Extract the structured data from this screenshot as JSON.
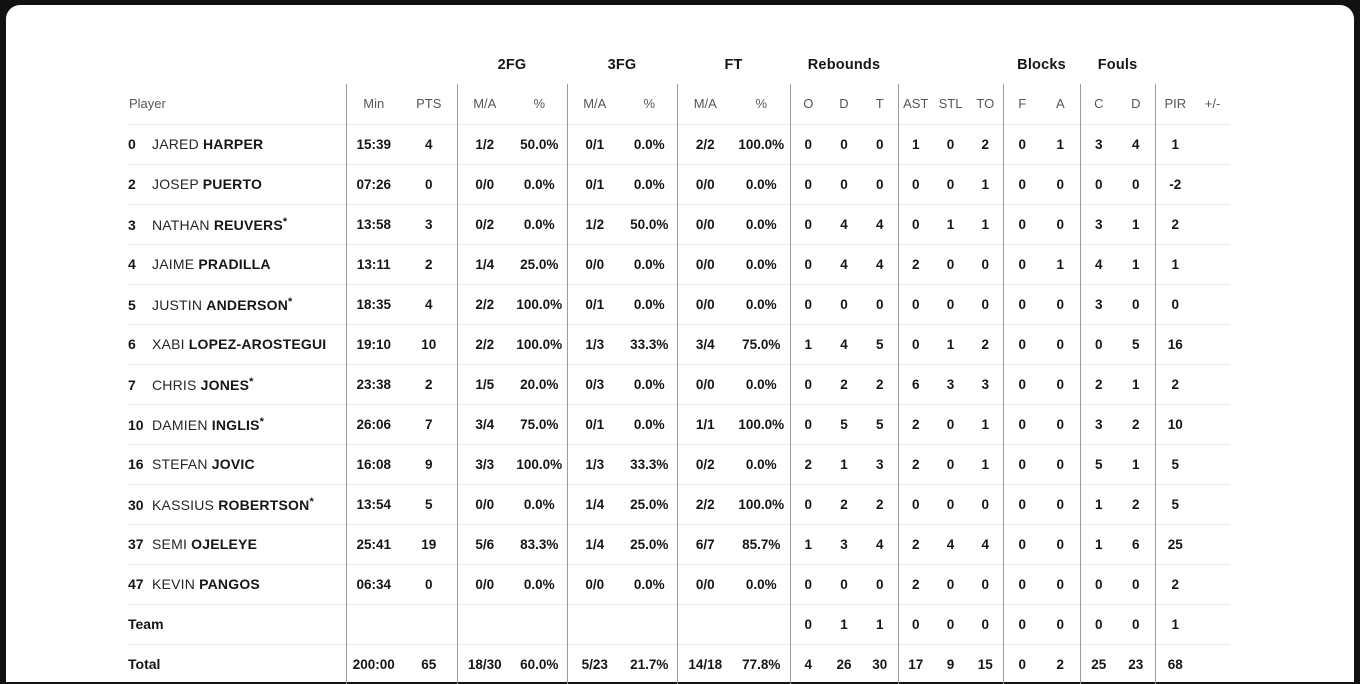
{
  "theme": {
    "page_bg": "#111111",
    "card_bg": "#ffffff",
    "text_dark": "#16161a",
    "text_gray": "#55565b",
    "divider": "#9a9a9f",
    "row_line": "#ebebeb"
  },
  "table": {
    "group_headers": [
      "2FG",
      "3FG",
      "FT",
      "Rebounds",
      "Blocks",
      "Fouls"
    ],
    "columns": [
      "Player",
      "Min",
      "PTS",
      "M/A",
      "%",
      "M/A",
      "%",
      "M/A",
      "%",
      "O",
      "D",
      "T",
      "AST",
      "STL",
      "TO",
      "F",
      "A",
      "C",
      "D",
      "PIR",
      "+/-"
    ],
    "rows": [
      {
        "num": "0",
        "first": "JARED",
        "last": "HARPER",
        "starter": false,
        "stats": {
          "min": "15:39",
          "pts": "4",
          "fg2ma": "1/2",
          "fg2pct": "50.0%",
          "fg3ma": "0/1",
          "fg3pct": "0.0%",
          "ftma": "2/2",
          "ftpct": "100.0%",
          "reb_o": "0",
          "reb_d": "0",
          "reb_t": "0",
          "ast": "1",
          "stl": "0",
          "to": "2",
          "blk_f": "0",
          "blk_a": "1",
          "foul_c": "3",
          "foul_d": "4",
          "pir": "1",
          "plusminus": ""
        }
      },
      {
        "num": "2",
        "first": "JOSEP",
        "last": "PUERTO",
        "starter": false,
        "stats": {
          "min": "07:26",
          "pts": "0",
          "fg2ma": "0/0",
          "fg2pct": "0.0%",
          "fg3ma": "0/1",
          "fg3pct": "0.0%",
          "ftma": "0/0",
          "ftpct": "0.0%",
          "reb_o": "0",
          "reb_d": "0",
          "reb_t": "0",
          "ast": "0",
          "stl": "0",
          "to": "1",
          "blk_f": "0",
          "blk_a": "0",
          "foul_c": "0",
          "foul_d": "0",
          "pir": "-2",
          "plusminus": ""
        }
      },
      {
        "num": "3",
        "first": "NATHAN",
        "last": "REUVERS",
        "starter": true,
        "stats": {
          "min": "13:58",
          "pts": "3",
          "fg2ma": "0/2",
          "fg2pct": "0.0%",
          "fg3ma": "1/2",
          "fg3pct": "50.0%",
          "ftma": "0/0",
          "ftpct": "0.0%",
          "reb_o": "0",
          "reb_d": "4",
          "reb_t": "4",
          "ast": "0",
          "stl": "1",
          "to": "1",
          "blk_f": "0",
          "blk_a": "0",
          "foul_c": "3",
          "foul_d": "1",
          "pir": "2",
          "plusminus": ""
        }
      },
      {
        "num": "4",
        "first": "JAIME",
        "last": "PRADILLA",
        "starter": false,
        "stats": {
          "min": "13:11",
          "pts": "2",
          "fg2ma": "1/4",
          "fg2pct": "25.0%",
          "fg3ma": "0/0",
          "fg3pct": "0.0%",
          "ftma": "0/0",
          "ftpct": "0.0%",
          "reb_o": "0",
          "reb_d": "4",
          "reb_t": "4",
          "ast": "2",
          "stl": "0",
          "to": "0",
          "blk_f": "0",
          "blk_a": "1",
          "foul_c": "4",
          "foul_d": "1",
          "pir": "1",
          "plusminus": ""
        }
      },
      {
        "num": "5",
        "first": "JUSTIN",
        "last": "ANDERSON",
        "starter": true,
        "stats": {
          "min": "18:35",
          "pts": "4",
          "fg2ma": "2/2",
          "fg2pct": "100.0%",
          "fg3ma": "0/1",
          "fg3pct": "0.0%",
          "ftma": "0/0",
          "ftpct": "0.0%",
          "reb_o": "0",
          "reb_d": "0",
          "reb_t": "0",
          "ast": "0",
          "stl": "0",
          "to": "0",
          "blk_f": "0",
          "blk_a": "0",
          "foul_c": "3",
          "foul_d": "0",
          "pir": "0",
          "plusminus": ""
        }
      },
      {
        "num": "6",
        "first": "XABI",
        "last": "LOPEZ-AROSTEGUI",
        "starter": false,
        "stats": {
          "min": "19:10",
          "pts": "10",
          "fg2ma": "2/2",
          "fg2pct": "100.0%",
          "fg3ma": "1/3",
          "fg3pct": "33.3%",
          "ftma": "3/4",
          "ftpct": "75.0%",
          "reb_o": "1",
          "reb_d": "4",
          "reb_t": "5",
          "ast": "0",
          "stl": "1",
          "to": "2",
          "blk_f": "0",
          "blk_a": "0",
          "foul_c": "0",
          "foul_d": "5",
          "pir": "16",
          "plusminus": ""
        }
      },
      {
        "num": "7",
        "first": "CHRIS",
        "last": "JONES",
        "starter": true,
        "stats": {
          "min": "23:38",
          "pts": "2",
          "fg2ma": "1/5",
          "fg2pct": "20.0%",
          "fg3ma": "0/3",
          "fg3pct": "0.0%",
          "ftma": "0/0",
          "ftpct": "0.0%",
          "reb_o": "0",
          "reb_d": "2",
          "reb_t": "2",
          "ast": "6",
          "stl": "3",
          "to": "3",
          "blk_f": "0",
          "blk_a": "0",
          "foul_c": "2",
          "foul_d": "1",
          "pir": "2",
          "plusminus": ""
        }
      },
      {
        "num": "10",
        "first": "DAMIEN",
        "last": "INGLIS",
        "starter": true,
        "stats": {
          "min": "26:06",
          "pts": "7",
          "fg2ma": "3/4",
          "fg2pct": "75.0%",
          "fg3ma": "0/1",
          "fg3pct": "0.0%",
          "ftma": "1/1",
          "ftpct": "100.0%",
          "reb_o": "0",
          "reb_d": "5",
          "reb_t": "5",
          "ast": "2",
          "stl": "0",
          "to": "1",
          "blk_f": "0",
          "blk_a": "0",
          "foul_c": "3",
          "foul_d": "2",
          "pir": "10",
          "plusminus": ""
        }
      },
      {
        "num": "16",
        "first": "STEFAN",
        "last": "JOVIC",
        "starter": false,
        "stats": {
          "min": "16:08",
          "pts": "9",
          "fg2ma": "3/3",
          "fg2pct": "100.0%",
          "fg3ma": "1/3",
          "fg3pct": "33.3%",
          "ftma": "0/2",
          "ftpct": "0.0%",
          "reb_o": "2",
          "reb_d": "1",
          "reb_t": "3",
          "ast": "2",
          "stl": "0",
          "to": "1",
          "blk_f": "0",
          "blk_a": "0",
          "foul_c": "5",
          "foul_d": "1",
          "pir": "5",
          "plusminus": ""
        }
      },
      {
        "num": "30",
        "first": "KASSIUS",
        "last": "ROBERTSON",
        "starter": true,
        "stats": {
          "min": "13:54",
          "pts": "5",
          "fg2ma": "0/0",
          "fg2pct": "0.0%",
          "fg3ma": "1/4",
          "fg3pct": "25.0%",
          "ftma": "2/2",
          "ftpct": "100.0%",
          "reb_o": "0",
          "reb_d": "2",
          "reb_t": "2",
          "ast": "0",
          "stl": "0",
          "to": "0",
          "blk_f": "0",
          "blk_a": "0",
          "foul_c": "1",
          "foul_d": "2",
          "pir": "5",
          "plusminus": ""
        }
      },
      {
        "num": "37",
        "first": "SEMI",
        "last": "OJELEYE",
        "starter": false,
        "stats": {
          "min": "25:41",
          "pts": "19",
          "fg2ma": "5/6",
          "fg2pct": "83.3%",
          "fg3ma": "1/4",
          "fg3pct": "25.0%",
          "ftma": "6/7",
          "ftpct": "85.7%",
          "reb_o": "1",
          "reb_d": "3",
          "reb_t": "4",
          "ast": "2",
          "stl": "4",
          "to": "4",
          "blk_f": "0",
          "blk_a": "0",
          "foul_c": "1",
          "foul_d": "6",
          "pir": "25",
          "plusminus": ""
        }
      },
      {
        "num": "47",
        "first": "KEVIN",
        "last": "PANGOS",
        "starter": false,
        "stats": {
          "min": "06:34",
          "pts": "0",
          "fg2ma": "0/0",
          "fg2pct": "0.0%",
          "fg3ma": "0/0",
          "fg3pct": "0.0%",
          "ftma": "0/0",
          "ftpct": "0.0%",
          "reb_o": "0",
          "reb_d": "0",
          "reb_t": "0",
          "ast": "2",
          "stl": "0",
          "to": "0",
          "blk_f": "0",
          "blk_a": "0",
          "foul_c": "0",
          "foul_d": "0",
          "pir": "2",
          "plusminus": ""
        }
      },
      {
        "label": "Team",
        "stats": {
          "min": "",
          "pts": "",
          "fg2ma": "",
          "fg2pct": "",
          "fg3ma": "",
          "fg3pct": "",
          "ftma": "",
          "ftpct": "",
          "reb_o": "0",
          "reb_d": "1",
          "reb_t": "1",
          "ast": "0",
          "stl": "0",
          "to": "0",
          "blk_f": "0",
          "blk_a": "0",
          "foul_c": "0",
          "foul_d": "0",
          "pir": "1",
          "plusminus": ""
        }
      },
      {
        "label": "Total",
        "stats": {
          "min": "200:00",
          "pts": "65",
          "fg2ma": "18/30",
          "fg2pct": "60.0%",
          "fg3ma": "5/23",
          "fg3pct": "21.7%",
          "ftma": "14/18",
          "ftpct": "77.8%",
          "reb_o": "4",
          "reb_d": "26",
          "reb_t": "30",
          "ast": "17",
          "stl": "9",
          "to": "15",
          "blk_f": "0",
          "blk_a": "2",
          "foul_c": "25",
          "foul_d": "23",
          "pir": "68",
          "plusminus": ""
        }
      }
    ]
  }
}
